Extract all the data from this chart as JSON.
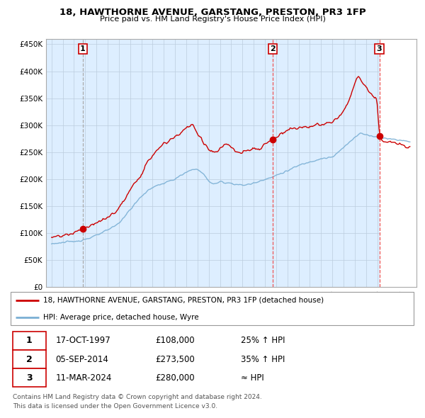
{
  "title": "18, HAWTHORNE AVENUE, GARSTANG, PRESTON, PR3 1FP",
  "subtitle": "Price paid vs. HM Land Registry's House Price Index (HPI)",
  "transactions": [
    {
      "num": 1,
      "date": "17-OCT-1997",
      "price": 108000,
      "hpi_rel": "25% ↑ HPI",
      "x_year": 1997.79
    },
    {
      "num": 2,
      "date": "05-SEP-2014",
      "price": 273500,
      "hpi_rel": "35% ↑ HPI",
      "x_year": 2014.68
    },
    {
      "num": 3,
      "date": "11-MAR-2024",
      "price": 280000,
      "hpi_rel": "≈ HPI",
      "x_year": 2024.19
    }
  ],
  "legend_house": "18, HAWTHORNE AVENUE, GARSTANG, PRESTON, PR3 1FP (detached house)",
  "legend_hpi": "HPI: Average price, detached house, Wyre",
  "footer1": "Contains HM Land Registry data © Crown copyright and database right 2024.",
  "footer2": "This data is licensed under the Open Government Licence v3.0.",
  "ylim": [
    0,
    460000
  ],
  "yticks": [
    0,
    50000,
    100000,
    150000,
    200000,
    250000,
    300000,
    350000,
    400000,
    450000
  ],
  "xlim_start": 1994.5,
  "xlim_end": 2027.5,
  "house_color": "#cc0000",
  "hpi_color": "#7aafd4",
  "vline1_color": "#aaaaaa",
  "vline23_color": "#ee5555",
  "chart_bg": "#ddeeff",
  "background_color": "#ffffff",
  "grid_color": "#bbccdd",
  "hatch_color": "#cccccc"
}
